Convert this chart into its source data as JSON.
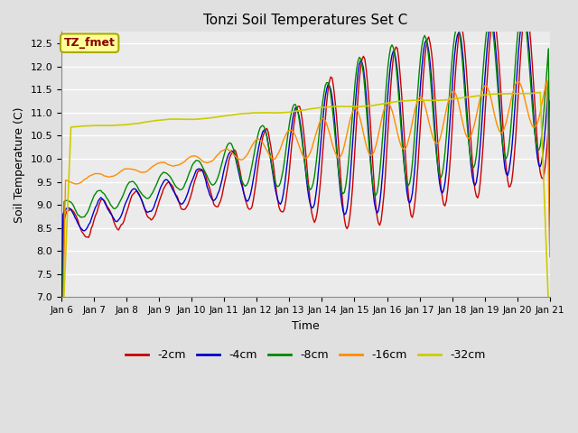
{
  "title": "Tonzi Soil Temperatures Set C",
  "xlabel": "Time",
  "ylabel": "Soil Temperature (C)",
  "ylim": [
    7.0,
    12.75
  ],
  "yticks": [
    7.0,
    7.5,
    8.0,
    8.5,
    9.0,
    9.5,
    10.0,
    10.5,
    11.0,
    11.5,
    12.0,
    12.5
  ],
  "x_tick_labels": [
    "Jan 6",
    "Jan 7",
    "Jan 8",
    "Jan 9",
    "Jan 10",
    "Jan 11",
    "Jan 12",
    "Jan 13",
    "Jan 14",
    "Jan 15",
    "Jan 16",
    "Jan 17",
    "Jan 18",
    "Jan 19",
    "Jan 20",
    "Jan 21"
  ],
  "annotation_text": "TZ_fmet",
  "annotation_color": "#8B0000",
  "annotation_bg": "#FFFF99",
  "colors": {
    "m2cm": "#CC0000",
    "m4cm": "#0000CC",
    "m8cm": "#008800",
    "m16cm": "#FF8C00",
    "m32cm": "#CCCC00"
  },
  "legend_labels": [
    "-2cm",
    "-4cm",
    "-8cm",
    "-16cm",
    "-32cm"
  ],
  "legend_colors": [
    "#CC0000",
    "#0000CC",
    "#008800",
    "#FF8C00",
    "#CCCC00"
  ],
  "bg_color": "#E0E0E0",
  "plot_bg": "#EBEBEB",
  "grid_color": "#FFFFFF"
}
